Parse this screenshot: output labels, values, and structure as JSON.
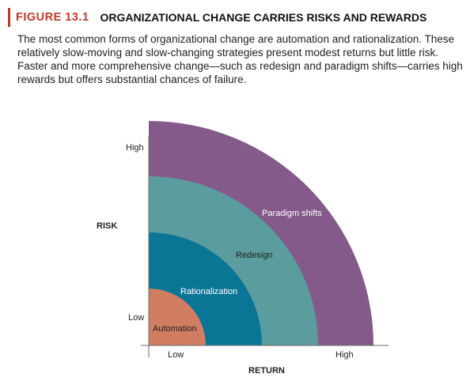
{
  "figure": {
    "label": "FIGURE 13.1",
    "title": "ORGANIZATIONAL CHANGE CARRIES RISKS AND REWARDS",
    "caption": "The most common forms of organizational change are automation and rationalization. These relatively slow-moving and slow-changing strategies present modest returns but little risk. Faster and more comprehensive change—such as redesign and paradigm shifts—carries high rewards but offers substantial chances of failure."
  },
  "diagram": {
    "y_axis": {
      "title": "RISK",
      "high_label": "High",
      "low_label": "Low"
    },
    "x_axis": {
      "title": "RETURN",
      "low_label": "Low",
      "high_label": "High"
    },
    "regions": [
      {
        "label": "Paradigm shifts",
        "color": "#845a8b",
        "level": 4
      },
      {
        "label": "Redesign",
        "color": "#5b9c9e",
        "level": 3
      },
      {
        "label": "Rationalization",
        "color": "#0b7596",
        "level": 2
      },
      {
        "label": "Automation",
        "color": "#d17d61",
        "level": 1
      }
    ]
  }
}
